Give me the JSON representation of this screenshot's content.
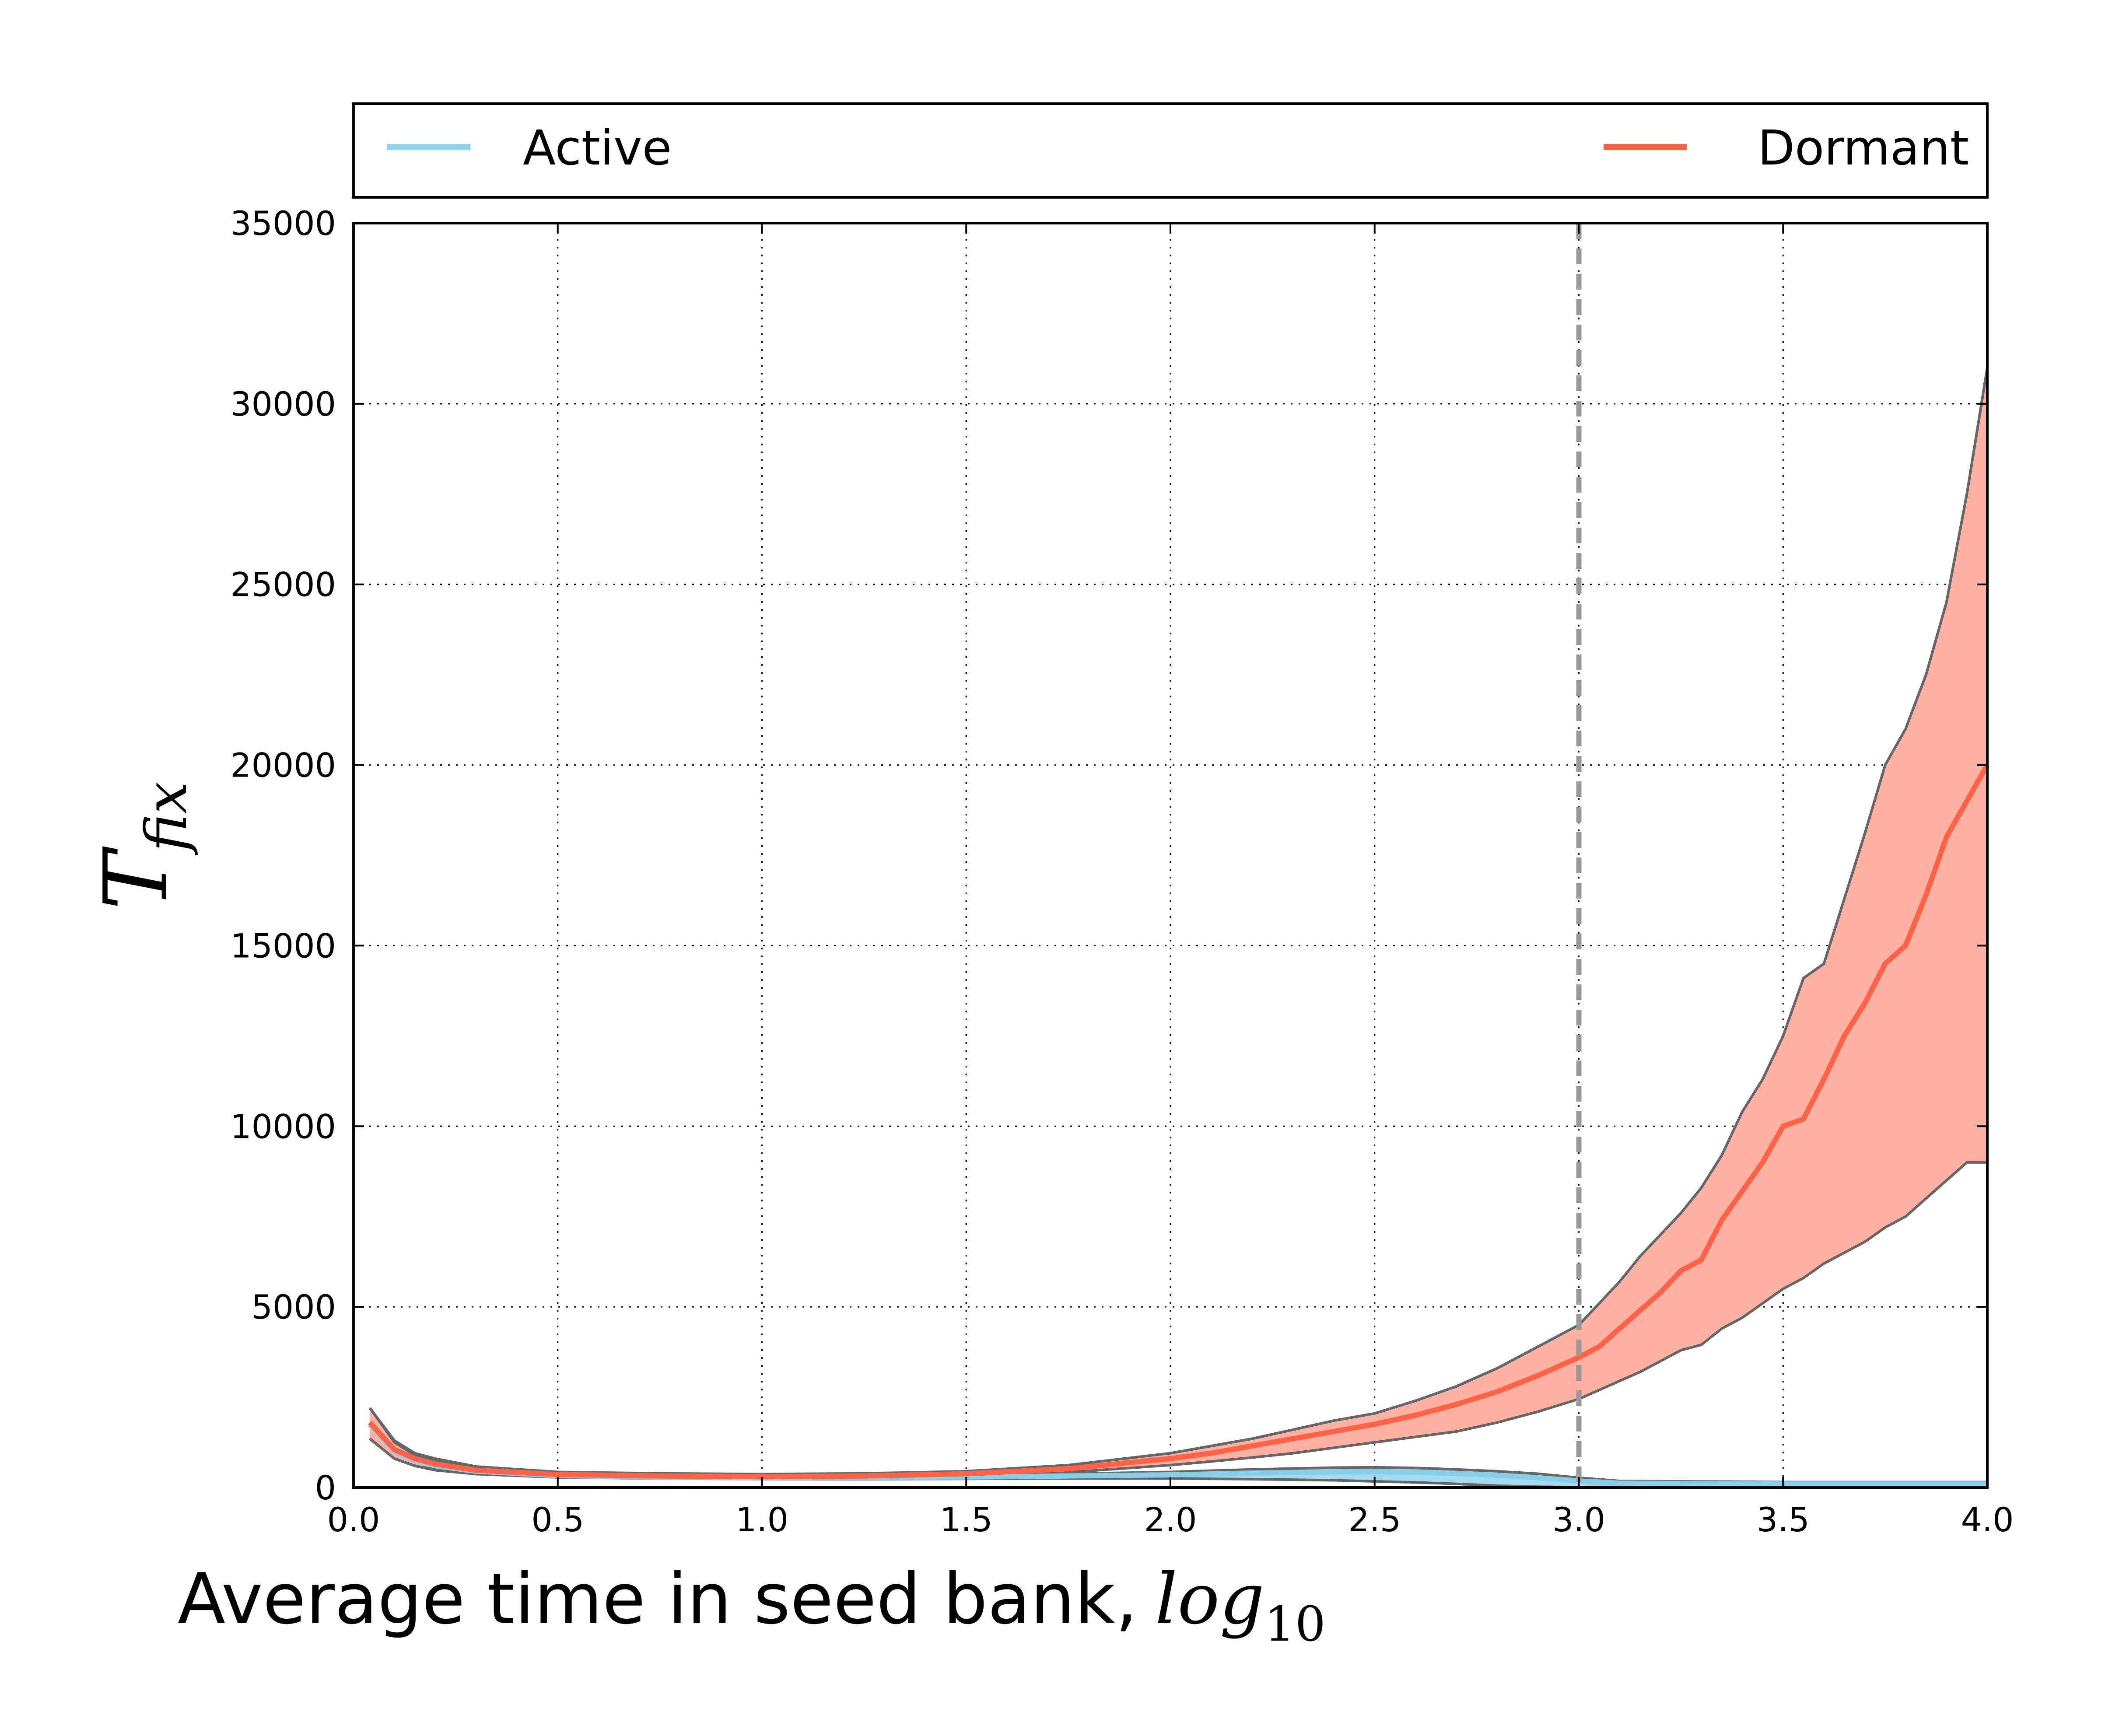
{
  "chart_data": {
    "type": "line",
    "xlabel": "Average time in seed bank,",
    "xlabel_math": "log",
    "xlabel_math_sub": "10",
    "ylabel_math": "T",
    "ylabel_math_sub": "fix",
    "xlim": [
      0.0,
      4.0
    ],
    "ylim": [
      0,
      35000
    ],
    "xticks": [
      0.0,
      0.5,
      1.0,
      1.5,
      2.0,
      2.5,
      3.0,
      3.5,
      4.0
    ],
    "xtick_labels": [
      "0.0",
      "0.5",
      "1.0",
      "1.5",
      "2.0",
      "2.5",
      "3.0",
      "3.5",
      "4.0"
    ],
    "yticks": [
      0,
      5000,
      10000,
      15000,
      20000,
      25000,
      30000,
      35000
    ],
    "ytick_labels": [
      "0",
      "5000",
      "10000",
      "15000",
      "20000",
      "25000",
      "30000",
      "35000"
    ],
    "grid": true,
    "legend_position": "top, above plot",
    "vline_x": 3.0,
    "colors": {
      "active": "#87ceeb",
      "dormant": "#ff6347",
      "dormant_band": "#ffb1a3",
      "band_edge": "#666666",
      "vline": "#999999"
    },
    "series": [
      {
        "name": "Active",
        "x": [
          0.04,
          0.1,
          0.15,
          0.2,
          0.3,
          0.5,
          0.75,
          1.0,
          1.25,
          1.5,
          1.75,
          2.0,
          2.2,
          2.4,
          2.5,
          2.6,
          2.7,
          2.8,
          2.9,
          3.0,
          3.1,
          3.5,
          4.0
        ],
        "mean": [
          1750,
          1000,
          750,
          600,
          450,
          330,
          290,
          270,
          275,
          290,
          320,
          350,
          400,
          430,
          440,
          420,
          390,
          340,
          270,
          180,
          120,
          100,
          100
        ],
        "lower": [
          1350,
          800,
          600,
          480,
          370,
          280,
          250,
          230,
          230,
          240,
          250,
          250,
          230,
          200,
          170,
          140,
          100,
          50,
          20,
          10,
          5,
          0,
          0
        ],
        "upper": [
          2200,
          1250,
          900,
          730,
          540,
          380,
          330,
          310,
          320,
          340,
          380,
          430,
          500,
          550,
          560,
          540,
          500,
          450,
          380,
          270,
          180,
          150,
          150
        ]
      },
      {
        "name": "Dormant",
        "x": [
          0.04,
          0.1,
          0.15,
          0.2,
          0.3,
          0.5,
          0.75,
          1.0,
          1.25,
          1.5,
          1.75,
          2.0,
          2.1,
          2.2,
          2.3,
          2.4,
          2.5,
          2.6,
          2.7,
          2.8,
          2.9,
          3.0,
          3.05,
          3.1,
          3.15,
          3.2,
          3.25,
          3.3,
          3.35,
          3.4,
          3.45,
          3.5,
          3.55,
          3.6,
          3.65,
          3.7,
          3.75,
          3.8,
          3.85,
          3.9,
          3.95,
          4.0
        ],
        "mean": [
          1800,
          1050,
          800,
          650,
          480,
          360,
          320,
          300,
          320,
          380,
          520,
          800,
          950,
          1150,
          1350,
          1550,
          1750,
          2000,
          2300,
          2650,
          3100,
          3600,
          3900,
          4400,
          4900,
          5400,
          6000,
          6300,
          7400,
          8200,
          9000,
          10000,
          10200,
          11300,
          12500,
          13400,
          14500,
          15000,
          16400,
          18000,
          19000,
          20000
        ],
        "lower": [
          1350,
          800,
          600,
          500,
          380,
          290,
          260,
          250,
          270,
          320,
          420,
          620,
          720,
          830,
          950,
          1100,
          1250,
          1400,
          1550,
          1800,
          2100,
          2450,
          2700,
          2950,
          3200,
          3500,
          3800,
          3950,
          4400,
          4700,
          5100,
          5500,
          5800,
          6200,
          6500,
          6800,
          7200,
          7500,
          8000,
          8500,
          9000,
          9000
        ],
        "upper": [
          2200,
          1300,
          950,
          800,
          580,
          430,
          390,
          370,
          390,
          450,
          620,
          950,
          1150,
          1350,
          1600,
          1850,
          2050,
          2400,
          2800,
          3300,
          3900,
          4500,
          5100,
          5700,
          6400,
          7000,
          7600,
          8300,
          9200,
          10400,
          11300,
          12500,
          14100,
          14500,
          16300,
          18100,
          20000,
          21000,
          22500,
          24500,
          27500,
          31000
        ]
      }
    ]
  }
}
